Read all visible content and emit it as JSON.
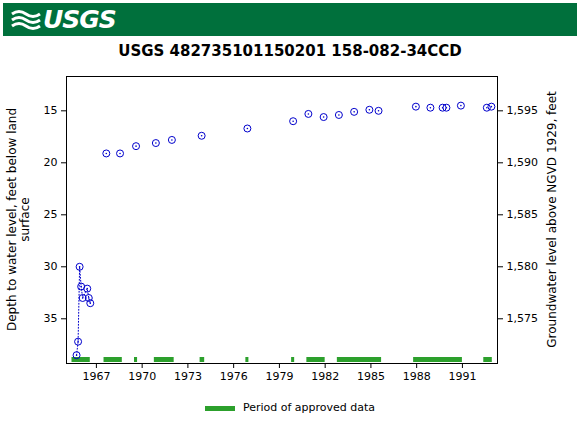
{
  "header": "USGS",
  "chart_data": {
    "type": "scatter",
    "title": "USGS 482735101150201 158-082-34CCD",
    "y_label": "Depth to water level, feet below land surface",
    "y2_label": "Groundwater level above NGVD 1929, feet",
    "xlim": [
      1965.04,
      1993.3
    ],
    "xticks": [
      1967,
      1970,
      1973,
      1976,
      1979,
      1982,
      1985,
      1988,
      1991
    ],
    "ylim": [
      11.7,
      39.3
    ],
    "yticks": [
      15,
      20,
      25,
      30,
      35
    ],
    "y2lim": [
      1570.7,
      1598.3
    ],
    "y2ticks": [
      1575,
      1580,
      1585,
      1590,
      1595
    ],
    "grid": false,
    "series": [
      {
        "color": "#0000cc",
        "marker": "circle",
        "line_style": "dotted",
        "x": [
          1965.7,
          1965.8,
          1965.9,
          1966.0,
          1966.1,
          1966.4,
          1966.5,
          1966.6
        ],
        "values": [
          38.5,
          37.2,
          30.0,
          31.9,
          33.0,
          32.1,
          33.0,
          33.5
        ]
      },
      {
        "color": "#0000cc",
        "marker": "circle",
        "line_style": "none",
        "x": [
          1967.65,
          1968.55,
          1969.6,
          1970.9,
          1971.95,
          1973.9,
          1976.9,
          1979.9,
          1980.9,
          1981.9,
          1982.9,
          1983.9,
          1984.9,
          1985.5,
          1987.95,
          1988.9,
          1989.7,
          1989.95,
          1990.9,
          1992.6,
          1992.9
        ],
        "values": [
          19.1,
          19.1,
          18.4,
          18.1,
          17.8,
          17.4,
          16.7,
          16.0,
          15.3,
          15.6,
          15.4,
          15.1,
          14.9,
          15.0,
          14.6,
          14.7,
          14.7,
          14.7,
          14.5,
          14.7,
          14.6
        ]
      }
    ],
    "approved_periods": {
      "name": "Period of approved data",
      "color": "#2ca02c",
      "ranges": [
        [
          1965.4,
          1966.6
        ],
        [
          1967.5,
          1968.7
        ],
        [
          1969.5,
          1969.7
        ],
        [
          1970.8,
          1972.1
        ],
        [
          1973.8,
          1974.1
        ],
        [
          1976.8,
          1977.0
        ],
        [
          1979.8,
          1980.0
        ],
        [
          1980.8,
          1982.0
        ],
        [
          1982.8,
          1985.7
        ],
        [
          1987.8,
          1991.0
        ],
        [
          1992.4,
          1992.96
        ]
      ]
    }
  }
}
